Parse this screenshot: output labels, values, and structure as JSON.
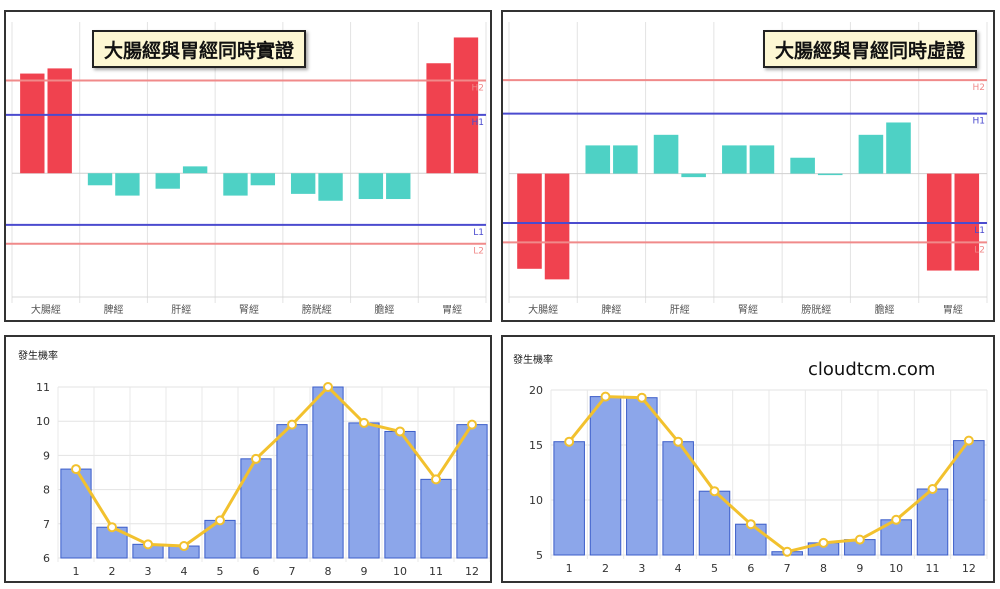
{
  "colors": {
    "excess_bar": "#f0424f",
    "normal_bar": "#4ed1c5",
    "prob_bar": "#8ca6ea",
    "prob_line": "#f2c12e",
    "h1_l1": "#4b4bcf",
    "h2_l2": "#f08a8a"
  },
  "watermark": "cloudtcm.com",
  "chart_data": [
    {
      "type": "bar",
      "title": "大腸經與胃經同時實證",
      "categories": [
        "大腸經",
        "脾經",
        "肝經",
        "腎經",
        "膀胱經",
        "膽經",
        "胃經"
      ],
      "series": [
        {
          "values": [
            5.8,
            -0.7,
            -0.9,
            -1.3,
            -1.2,
            -1.5,
            6.4
          ]
        },
        {
          "values": [
            6.1,
            -1.3,
            0.4,
            -0.7,
            -1.6,
            -1.5,
            7.9
          ]
        }
      ],
      "reference_lines": [
        {
          "label": "H2",
          "value": 5.4
        },
        {
          "label": "H1",
          "value": 3.4
        },
        {
          "label": "L1",
          "value": -3.0
        },
        {
          "label": "L2",
          "value": -4.1
        }
      ],
      "ylim": [
        -7.2,
        8.8
      ],
      "grid": true
    },
    {
      "type": "bar",
      "title": "大腸經與胃經同時虛證",
      "categories": [
        "大腸經",
        "脾經",
        "肝經",
        "腎經",
        "膀胱經",
        "膽經",
        "胃經"
      ],
      "series": [
        {
          "values": [
            -5.4,
            1.6,
            2.2,
            1.6,
            0.9,
            2.2,
            -5.5
          ]
        },
        {
          "values": [
            -6.0,
            1.6,
            -0.2,
            1.6,
            0.0,
            2.9,
            -5.5
          ]
        }
      ],
      "reference_lines": [
        {
          "label": "H2",
          "value": 5.3
        },
        {
          "label": "H1",
          "value": 3.4
        },
        {
          "label": "L1",
          "value": -2.8
        },
        {
          "label": "L2",
          "value": -3.9
        }
      ],
      "ylim": [
        -7.0,
        8.6
      ],
      "grid": true
    },
    {
      "type": "bar",
      "ylabel": "發生機率",
      "categories": [
        "1",
        "2",
        "3",
        "4",
        "5",
        "6",
        "7",
        "8",
        "9",
        "10",
        "11",
        "12"
      ],
      "values": [
        8.6,
        6.9,
        6.4,
        6.35,
        7.1,
        8.9,
        9.9,
        11,
        9.95,
        9.7,
        8.3,
        9.9
      ],
      "line_values": [
        8.6,
        6.9,
        6.4,
        6.35,
        7.1,
        8.9,
        9.9,
        11,
        9.95,
        9.7,
        8.3,
        9.9
      ],
      "ylim": [
        6,
        11
      ],
      "yticks": [
        6,
        7,
        8,
        9,
        10,
        11
      ],
      "grid": true
    },
    {
      "type": "bar",
      "ylabel": "發生機率",
      "categories": [
        "1",
        "2",
        "3",
        "4",
        "5",
        "6",
        "7",
        "8",
        "9",
        "10",
        "11",
        "12"
      ],
      "values": [
        15.3,
        19.4,
        19.3,
        15.3,
        10.8,
        7.8,
        5.3,
        6.1,
        6.4,
        8.2,
        11.0,
        15.4
      ],
      "line_values": [
        15.3,
        19.4,
        19.3,
        15.3,
        10.8,
        7.8,
        5.3,
        6.1,
        6.4,
        8.2,
        11.0,
        15.4
      ],
      "ylim": [
        5,
        20
      ],
      "yticks": [
        5,
        10,
        15,
        20
      ],
      "grid": true
    }
  ]
}
